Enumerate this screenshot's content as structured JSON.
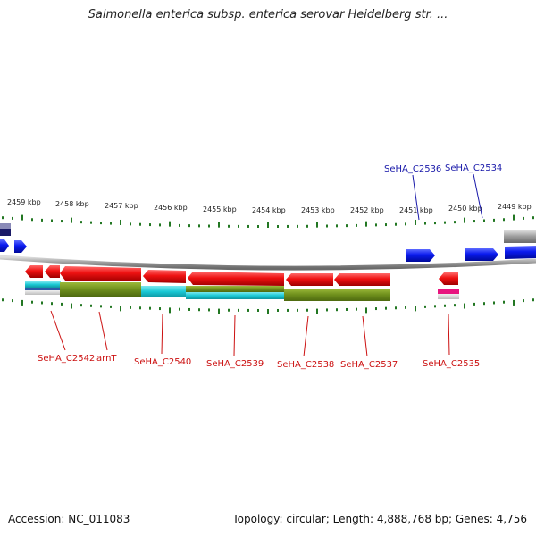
{
  "title": "Salmonella enterica subsp. enterica serovar Heidelberg str. ...",
  "footer": {
    "accession": "Accession: NC_011083",
    "stats": "Topology: circular; Length: 4,888,768 bp; Genes: 4,756"
  },
  "colors": {
    "forward_gene": "#0a1aee",
    "reverse_gene": "#ee1111",
    "forward_label": "#1a1aaa",
    "reverse_label": "#cc1111",
    "tick": "#227722",
    "backbone": "#888888",
    "olive_track": "#6e8f1c",
    "cyan_track": "#19c8d4",
    "pink_gene": "#e8157f"
  },
  "ticks": [
    {
      "label": "2459 kbp"
    },
    {
      "label": "2458 kbp"
    },
    {
      "label": "2457 kbp"
    },
    {
      "label": "2456 kbp"
    },
    {
      "label": "2455 kbp"
    },
    {
      "label": "2454 kbp"
    },
    {
      "label": "2453 kbp"
    },
    {
      "label": "2452 kbp"
    },
    {
      "label": "2451 kbp"
    },
    {
      "label": "2450 kbp"
    },
    {
      "label": "2449 kbp"
    }
  ],
  "gene_labels": {
    "forward": [
      {
        "name": "SeHA_C2536"
      },
      {
        "name": "SeHA_C2534"
      }
    ],
    "reverse": [
      {
        "name": "SeHA_C2542"
      },
      {
        "name": "arnT"
      },
      {
        "name": "SeHA_C2540"
      },
      {
        "name": "SeHA_C2539"
      },
      {
        "name": "SeHA_C2538"
      },
      {
        "name": "SeHA_C2537"
      },
      {
        "name": "SeHA_C2535"
      }
    ]
  }
}
